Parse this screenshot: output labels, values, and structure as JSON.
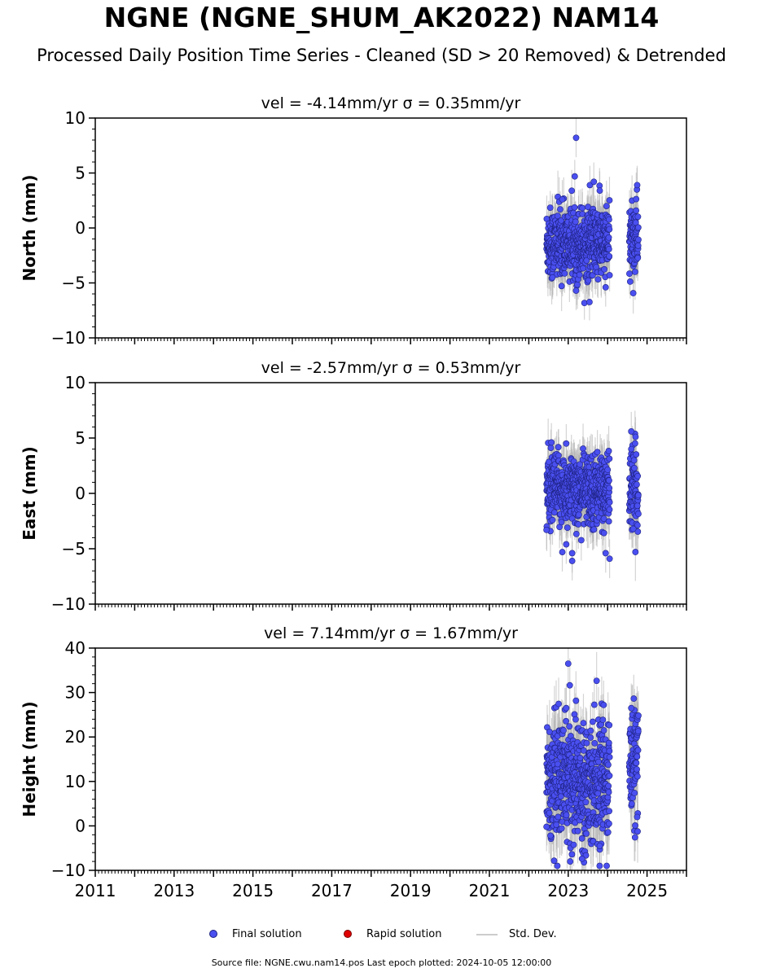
{
  "header": {
    "title": "NGNE (NGNE_SHUM_AK2022) NAM14",
    "subtitle": "Processed Daily Position Time Series - Cleaned (SD > 20 Removed) & Detrended"
  },
  "legend": {
    "final_label": "Final solution",
    "rapid_label": "Rapid solution",
    "std_label": "Std. Dev."
  },
  "footer": {
    "source": "Source file: NGNE.cwu.nam14.pos  Last epoch plotted: 2024-10-05 12:00:00"
  },
  "colors": {
    "final_fill": "#4a4ff0",
    "final_edge": "#1e2280",
    "rapid_fill": "#e00000",
    "std_line": "#b0b0b0"
  },
  "chart_data": [
    {
      "type": "scatter",
      "title": "vel = -4.14mm/yr   σ = 0.35mm/yr",
      "ylabel": "North (mm)",
      "xlim": [
        2011,
        2026
      ],
      "ylim": [
        -10,
        10
      ],
      "yticks": [
        -10,
        -5,
        0,
        5,
        10
      ],
      "xticks": [
        2011,
        2013,
        2015,
        2017,
        2019,
        2021,
        2023,
        2025
      ],
      "show_xticklabels": false,
      "grid": false,
      "series": [
        {
          "name": "Final solution",
          "segments": [
            {
              "start": 2022.45,
              "end": 2024.05,
              "mean": -1.4,
              "spread": 1.6,
              "std": 1.6
            },
            {
              "start": 2024.55,
              "end": 2024.78,
              "mean": -0.8,
              "spread": 1.8,
              "std": 1.7
            }
          ],
          "outliers": [
            {
              "x": 2023.2,
              "y": 8.2
            },
            {
              "x": 2023.55,
              "y": 3.9
            },
            {
              "x": 2023.65,
              "y": 4.2
            },
            {
              "x": 2023.8,
              "y": 3.4
            },
            {
              "x": 2024.75,
              "y": 3.9
            },
            {
              "x": 2022.85,
              "y": 2.6
            },
            {
              "x": 2023.2,
              "y": -5.7
            },
            {
              "x": 2023.95,
              "y": -5.4
            },
            {
              "x": 2022.6,
              "y": -4.5
            }
          ]
        }
      ]
    },
    {
      "type": "scatter",
      "title": "vel = -2.57mm/yr   σ = 0.53mm/yr",
      "ylabel": "East (mm)",
      "xlim": [
        2011,
        2026
      ],
      "ylim": [
        -10,
        10
      ],
      "yticks": [
        -10,
        -5,
        0,
        5,
        10
      ],
      "xticks": [
        2011,
        2013,
        2015,
        2017,
        2019,
        2021,
        2023,
        2025
      ],
      "show_xticklabels": false,
      "grid": false,
      "series": [
        {
          "name": "Final solution",
          "segments": [
            {
              "start": 2022.45,
              "end": 2024.05,
              "mean": 0.3,
              "spread": 1.6,
              "std": 1.6
            },
            {
              "start": 2024.55,
              "end": 2024.78,
              "mean": 0.4,
              "spread": 1.9,
              "std": 1.8
            }
          ],
          "outliers": [
            {
              "x": 2024.6,
              "y": 5.6
            },
            {
              "x": 2022.95,
              "y": 4.5
            },
            {
              "x": 2024.6,
              "y": 4.0
            },
            {
              "x": 2023.1,
              "y": -6.1
            },
            {
              "x": 2022.85,
              "y": -5.3
            },
            {
              "x": 2023.1,
              "y": -5.4
            },
            {
              "x": 2024.05,
              "y": -5.9
            },
            {
              "x": 2023.95,
              "y": -5.4
            },
            {
              "x": 2022.95,
              "y": -4.6
            },
            {
              "x": 2022.45,
              "y": -3.3
            },
            {
              "x": 2024.65,
              "y": -3.2
            }
          ]
        }
      ]
    },
    {
      "type": "scatter",
      "title": "vel = 7.14mm/yr   σ = 1.67mm/yr",
      "ylabel": "Height (mm)",
      "xlim": [
        2011,
        2026
      ],
      "ylim": [
        -10,
        40
      ],
      "yticks": [
        -10,
        0,
        10,
        20,
        30,
        40
      ],
      "xticks": [
        2011,
        2013,
        2015,
        2017,
        2019,
        2021,
        2023,
        2025
      ],
      "show_xticklabels": true,
      "grid": false,
      "series": [
        {
          "name": "Final solution",
          "segments": [
            {
              "start": 2022.45,
              "end": 2024.05,
              "mean": 10.5,
              "spread": 6.5,
              "std": 5.0
            },
            {
              "start": 2024.55,
              "end": 2024.78,
              "mean": 14.0,
              "spread": 6.5,
              "std": 5.0
            }
          ],
          "outliers": [
            {
              "x": 2023.0,
              "y": 36.5
            },
            {
              "x": 2023.9,
              "y": 27.2
            },
            {
              "x": 2024.6,
              "y": 26.5
            },
            {
              "x": 2022.95,
              "y": 26.5
            },
            {
              "x": 2022.45,
              "y": -0.2
            },
            {
              "x": 2022.55,
              "y": -2.2
            },
            {
              "x": 2023.05,
              "y": -8.0
            },
            {
              "x": 2023.4,
              "y": -8.2
            },
            {
              "x": 2023.35,
              "y": -7.4
            },
            {
              "x": 2023.8,
              "y": -4.5
            },
            {
              "x": 2024.75,
              "y": 2.0
            }
          ]
        }
      ]
    }
  ]
}
